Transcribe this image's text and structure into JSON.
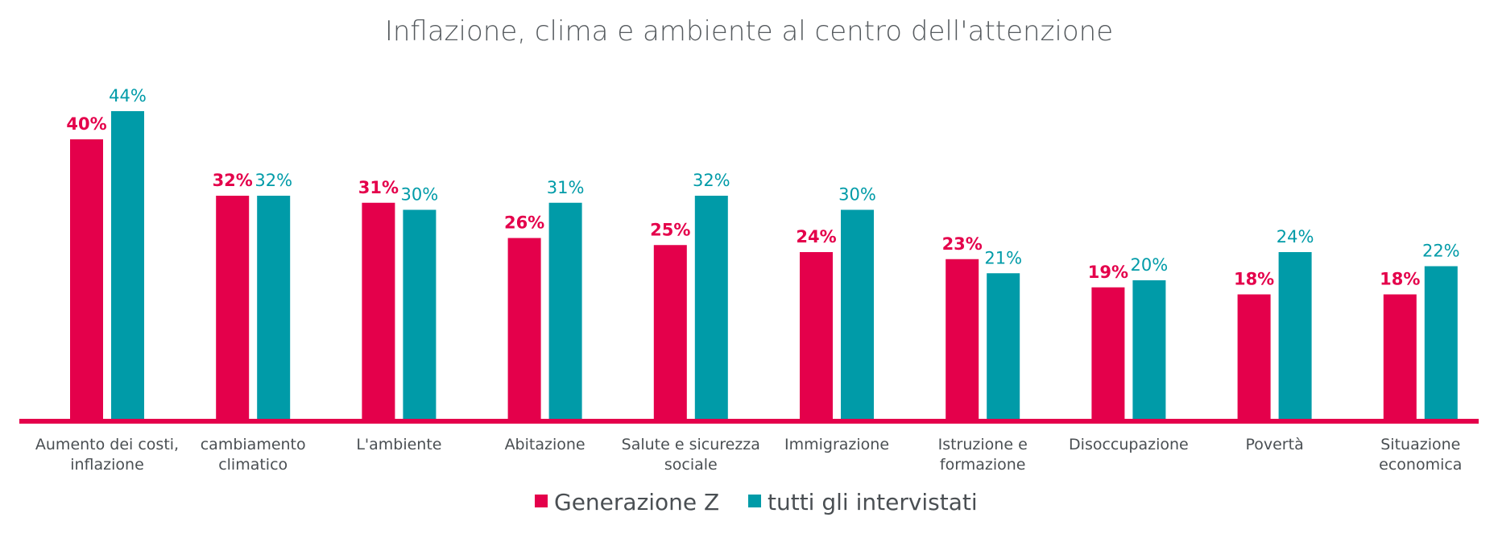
{
  "chart_data": {
    "type": "bar",
    "title": "Inflazione, clima e ambiente al centro dell'attenzione",
    "categories": [
      [
        "Aumento dei costi,",
        "inflazione"
      ],
      [
        "cambiamento",
        "climatico"
      ],
      [
        "L'ambiente"
      ],
      [
        "Abitazione"
      ],
      [
        "Salute e sicurezza",
        "sociale"
      ],
      [
        "Immigrazione"
      ],
      [
        "Istruzione e",
        "formazione"
      ],
      [
        "Disoccupazione"
      ],
      [
        "Povertà"
      ],
      [
        "Situazione",
        "economica"
      ]
    ],
    "series": [
      {
        "name": "Generazione Z",
        "color": "#e4004b",
        "values": [
          40,
          32,
          31,
          26,
          25,
          24,
          23,
          19,
          18,
          18
        ],
        "labels": [
          "40%",
          "32%",
          "31%",
          "26%",
          "25%",
          "24%",
          "23%",
          "19%",
          "18%",
          "18%"
        ]
      },
      {
        "name": "tutti gli intervistati",
        "color": "#009ba8",
        "values": [
          44,
          32,
          30,
          31,
          32,
          30,
          21,
          20,
          24,
          22
        ],
        "labels": [
          "44%",
          "32%",
          "30%",
          "31%",
          "32%",
          "30%",
          "21%",
          "20%",
          "24%",
          "22%"
        ]
      }
    ],
    "ylim": [
      0,
      44
    ],
    "grid": false,
    "legend_position": "bottom-center",
    "baseline_color": "#e4004b"
  }
}
